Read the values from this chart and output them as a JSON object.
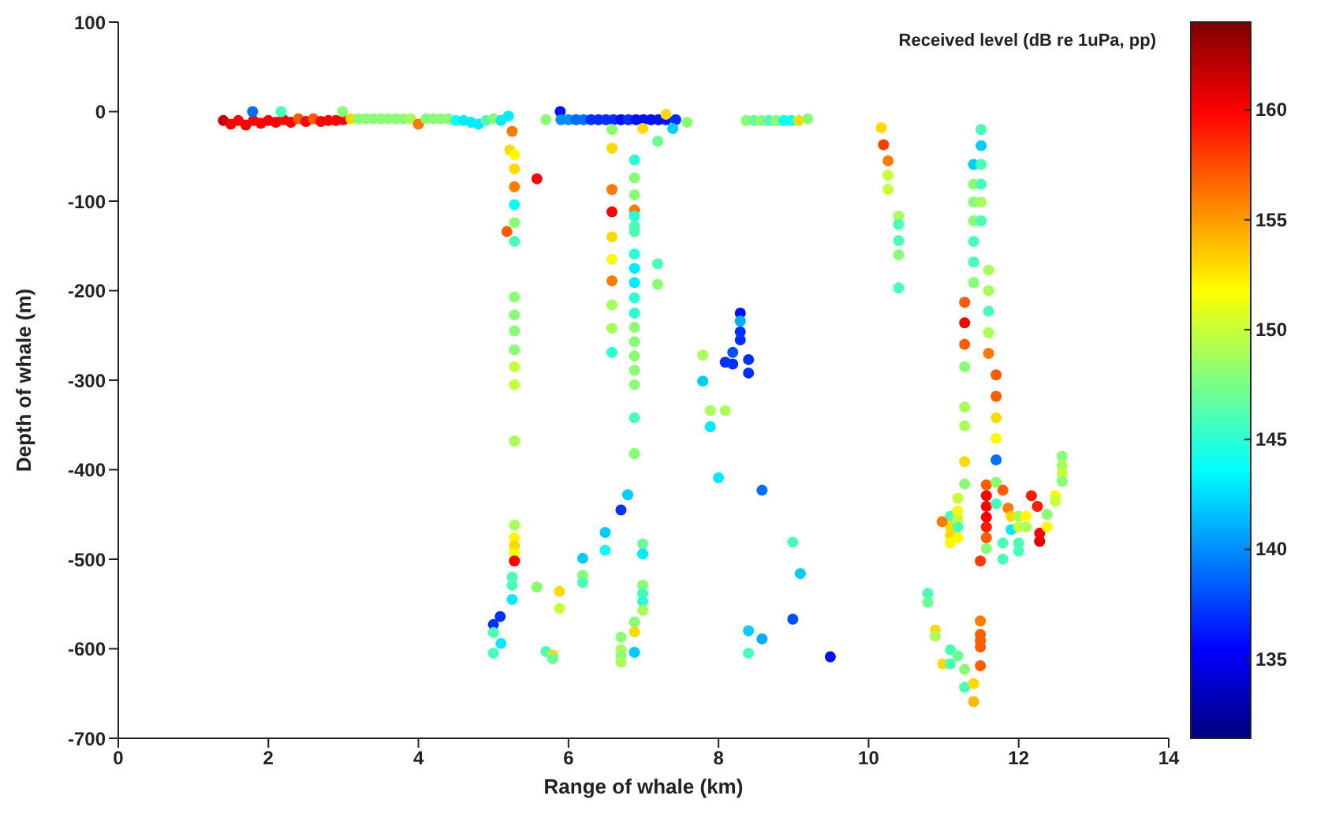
{
  "chart_data": {
    "type": "scatter",
    "xlabel": "Range of whale (km)",
    "ylabel": "Depth of whale (m)",
    "clabel": "Received level (dB re 1uPa, pp)",
    "xlim": [
      0,
      14
    ],
    "xticks": [
      0,
      2,
      4,
      6,
      8,
      10,
      12,
      14
    ],
    "ylim": [
      -700,
      100
    ],
    "yticks": [
      100,
      0,
      -100,
      -200,
      -300,
      -400,
      -500,
      -600,
      -700
    ],
    "clim": [
      131.4,
      164
    ],
    "cticks": [
      135,
      140,
      145,
      150,
      155,
      160
    ],
    "marker": "circle",
    "grid": false,
    "x": [
      1.4,
      1.5,
      1.6,
      1.7,
      1.8,
      1.9,
      2.0,
      2.1,
      2.2,
      2.3,
      2.4,
      2.5,
      2.6,
      2.7,
      2.8,
      2.9,
      3.0,
      3.1,
      3.2,
      3.3,
      3.4,
      3.5,
      3.6,
      3.7,
      3.8,
      3.9,
      4.0,
      4.1,
      4.2,
      4.3,
      4.4,
      4.5,
      4.6,
      4.7,
      4.8,
      4.9,
      5.0,
      5.1,
      5.2,
      1.79,
      2.17,
      2.99,
      5.25,
      5.22,
      5.28,
      5.28,
      5.28,
      5.28,
      5.28,
      5.18,
      5.28,
      5.28,
      5.28,
      5.28,
      5.28,
      5.28,
      5.28,
      5.28,
      5.28,
      5.28,
      5.28,
      5.28,
      5.28,
      5.25,
      5.25,
      5.25,
      5.58,
      5.09,
      5.0,
      5.0,
      5.1,
      5.0,
      5.58,
      5.88,
      5.88,
      5.7,
      5.79,
      5.79,
      5.7,
      5.89,
      5.9,
      6.0,
      6.1,
      6.2,
      6.3,
      6.4,
      6.5,
      6.6,
      6.7,
      6.8,
      6.9,
      7.0,
      7.1,
      7.2,
      7.3,
      7.43,
      7.3,
      7.58,
      6.99,
      7.39,
      8.37,
      8.47,
      8.57,
      8.67,
      8.77,
      8.87,
      8.97,
      9.07,
      9.19,
      6.58,
      6.58,
      6.58,
      6.58,
      6.58,
      6.58,
      6.58,
      6.58,
      6.58,
      6.58,
      6.88,
      6.88,
      6.88,
      6.88,
      6.88,
      6.88,
      6.88,
      6.88,
      6.88,
      6.88,
      6.88,
      6.88,
      6.88,
      6.88,
      6.88,
      6.88,
      6.88,
      6.88,
      6.88,
      7.19,
      7.19,
      7.19,
      10.17,
      10.2,
      10.26,
      10.26,
      10.26,
      10.4,
      10.4,
      10.4,
      10.4,
      10.4,
      8.29,
      8.29,
      8.29,
      8.29,
      8.19,
      8.09,
      8.19,
      8.4,
      8.4,
      7.79,
      7.79,
      7.89,
      8.09,
      7.89,
      8.0,
      8.58,
      6.79,
      6.7,
      6.49,
      6.49,
      6.19,
      6.19,
      6.19,
      6.99,
      6.99,
      6.99,
      6.99,
      6.99,
      6.99,
      6.88,
      6.88,
      6.88,
      6.7,
      6.7,
      6.7,
      6.7,
      8.99,
      9.09,
      8.99,
      8.4,
      8.58,
      8.4,
      9.49,
      11.5,
      11.5,
      11.4,
      11.5,
      11.4,
      11.5,
      11.4,
      11.5,
      11.4,
      11.5,
      11.4,
      11.4,
      11.4,
      11.6,
      11.6,
      11.6,
      11.6,
      11.6,
      11.28,
      11.28,
      11.28,
      11.28,
      11.28,
      11.28,
      11.28,
      11.28,
      11.7,
      11.7,
      11.7,
      11.7,
      11.7,
      11.57,
      11.57,
      11.57,
      11.57,
      11.57,
      11.57,
      11.57,
      11.7,
      11.7,
      11.79,
      11.86,
      11.9,
      11.9,
      12.0,
      12.0,
      11.79,
      11.79,
      12.0,
      12.0,
      12.1,
      12.1,
      12.17,
      12.25,
      12.28,
      12.28,
      12.38,
      12.38,
      12.49,
      12.49,
      12.58,
      12.58,
      12.58,
      12.58,
      11.09,
      11.09,
      11.09,
      11.09,
      10.98,
      11.19,
      11.19,
      11.19,
      11.19,
      11.19,
      11.49,
      10.79,
      10.79,
      10.89,
      10.89,
      10.99,
      11.09,
      11.09,
      11.19,
      11.28,
      11.28,
      11.4,
      11.4,
      11.49,
      11.49,
      11.49,
      11.49,
      11.49
    ],
    "values": [
      -10,
      -14,
      -10,
      -15,
      -10,
      -13,
      -10,
      -12,
      -9,
      -12,
      -8,
      -11,
      -8,
      -11,
      -10,
      -10,
      -9,
      -8,
      -8,
      -8,
      -8,
      -8,
      -8,
      -8,
      -8,
      -8,
      -14,
      -8,
      -8,
      -8,
      -8,
      -10,
      -10,
      -12,
      -14,
      -10,
      -8,
      -10,
      -5,
      0,
      0,
      0,
      -22,
      -43,
      -48,
      -64,
      -84,
      -104,
      -124,
      -134,
      -145,
      -207,
      -227,
      -245,
      -266,
      -285,
      -305,
      -368,
      -462,
      -476,
      -485,
      -493,
      -502,
      -520,
      -529,
      -545,
      -75,
      -564,
      -573,
      -582,
      -594,
      -605,
      -531,
      -536,
      -555,
      -603,
      -607,
      -611,
      -9,
      0,
      -9,
      -9,
      -9,
      -9,
      -9,
      -9,
      -9,
      -9,
      -9,
      -9,
      -9,
      -9,
      -9,
      -9,
      -9,
      -9,
      -3,
      -12,
      -19,
      -19,
      -10,
      -10,
      -10,
      -10,
      -10,
      -10,
      -10,
      -10,
      -8,
      -20,
      -41,
      -87,
      -112,
      -140,
      -165,
      -189,
      -216,
      -242,
      -269,
      -54,
      -74,
      -93,
      -110,
      -117,
      -128,
      -134,
      -159,
      -175,
      -191,
      -208,
      -225,
      -241,
      -257,
      -273,
      -289,
      -305,
      -342,
      -382,
      -33,
      -170,
      -193,
      -18,
      -37,
      -55,
      -71,
      -87,
      -117,
      -126,
      -144,
      -160,
      -197,
      -225,
      -234,
      -246,
      -255,
      -269,
      -280,
      -282,
      -277,
      -292,
      -272,
      -301,
      -334,
      -334,
      -352,
      -409,
      -423,
      -428,
      -445,
      -470,
      -490,
      -499,
      -518,
      -526,
      -483,
      -494,
      -529,
      -538,
      -547,
      -557,
      -570,
      -581,
      -604,
      -587,
      -601,
      -608,
      -615,
      -481,
      -516,
      -567,
      -580,
      -589,
      -605,
      -609,
      -20,
      -38,
      -59,
      -59,
      -81,
      -81,
      -101,
      -101,
      -122,
      -122,
      -145,
      -168,
      -191,
      -177,
      -200,
      -223,
      -247,
      -270,
      -213,
      -236,
      -260,
      -285,
      -330,
      -351,
      -391,
      -416,
      -294,
      -318,
      -342,
      -365,
      -389,
      -417,
      -429,
      -441,
      -453,
      -464,
      -476,
      -488,
      -414,
      -438,
      -423,
      -443,
      -452,
      -467,
      -452,
      -464,
      -482,
      -500,
      -482,
      -491,
      -452,
      -464,
      -429,
      -441,
      -480,
      -471,
      -450,
      -464,
      -429,
      -435,
      -385,
      -395,
      -404,
      -413,
      -452,
      -464,
      -473,
      -482,
      -458,
      -446,
      -455,
      -464,
      -476,
      -432,
      -502,
      -538,
      -548,
      -579,
      -586,
      -617,
      -601,
      -617,
      -608,
      -623,
      -643,
      -639,
      -659,
      -569,
      -584,
      -591,
      -598,
      -619
    ],
    "cvalues": [
      162,
      160,
      160,
      160,
      160,
      160,
      160,
      160,
      160,
      160,
      157,
      160,
      157,
      160,
      160,
      160,
      160,
      153,
      148,
      148,
      148,
      148,
      148,
      148,
      148,
      149,
      156,
      148,
      148,
      148,
      148,
      144,
      143,
      143,
      143,
      146,
      148,
      143,
      143,
      139,
      146,
      148,
      156,
      153,
      152,
      153,
      156,
      144,
      148,
      157,
      146,
      148,
      148,
      148,
      148,
      150,
      150,
      149,
      149,
      152,
      153,
      152,
      160,
      146,
      146,
      143,
      160,
      137,
      137,
      146,
      143,
      146,
      148,
      153,
      150,
      146,
      153,
      147,
      148,
      136,
      140,
      140,
      139,
      139,
      137,
      137,
      137,
      137,
      136,
      137,
      136,
      136,
      136,
      136,
      136,
      137,
      153,
      148,
      153,
      142,
      148,
      147,
      148,
      146,
      148,
      144,
      144,
      153,
      148,
      148,
      153,
      156,
      160,
      153,
      152,
      156,
      149,
      149,
      145,
      145,
      148,
      148,
      156,
      145,
      146,
      146,
      145,
      143,
      143,
      145,
      145,
      148,
      148,
      148,
      148,
      148,
      146,
      148,
      147,
      146,
      148,
      153,
      158,
      156,
      150,
      150,
      149,
      146,
      146,
      148,
      146,
      136,
      141,
      137,
      137,
      138,
      137,
      137,
      137,
      137,
      149,
      142,
      149,
      149,
      143,
      143,
      139,
      142,
      137,
      142,
      144,
      142,
      148,
      146,
      147,
      143,
      148,
      146,
      145,
      149,
      148,
      153,
      142,
      148,
      149,
      148,
      149,
      146,
      142,
      138,
      142,
      141,
      146,
      136,
      146,
      142,
      142,
      146,
      148,
      146,
      148,
      149,
      148,
      146,
      146,
      146,
      148,
      149,
      149,
      146,
      149,
      156,
      157,
      160,
      157,
      148,
      149,
      149,
      153,
      148,
      157,
      157,
      153,
      152,
      139,
      157,
      160,
      160,
      160,
      159,
      157,
      148,
      148,
      146,
      157,
      156,
      153,
      143,
      149,
      150,
      146,
      146,
      146,
      146,
      152,
      149,
      159,
      159,
      161,
      160,
      148,
      152,
      152,
      150,
      148,
      149,
      150,
      148,
      146,
      153,
      153,
      152,
      156,
      152,
      150,
      146,
      152,
      150,
      158,
      146,
      147,
      153,
      149,
      153,
      146,
      146,
      147,
      148,
      146,
      153,
      154,
      156,
      157,
      157,
      157,
      157
    ]
  }
}
